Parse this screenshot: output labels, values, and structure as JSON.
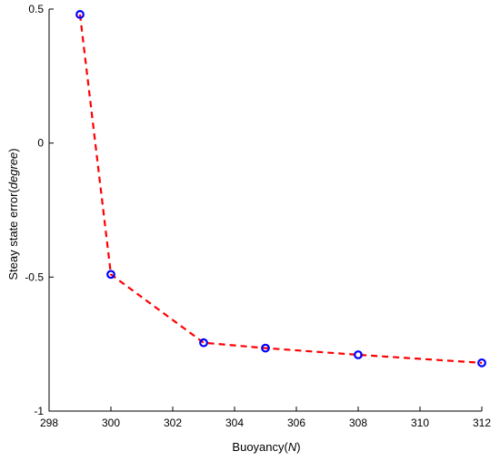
{
  "chart_data": {
    "type": "line",
    "xlabel": {
      "main": "Buoyancy(",
      "italic": "N",
      "end": ")"
    },
    "ylabel": {
      "main": "Steay state error(",
      "italic": "degree",
      "end": ")"
    },
    "xlim": [
      298,
      312
    ],
    "ylim": [
      -1,
      0.5
    ],
    "xticks": [
      298,
      300,
      302,
      304,
      306,
      308,
      310,
      312
    ],
    "yticks": [
      -1,
      -0.5,
      0,
      0.5
    ],
    "xtick_labels": [
      "298",
      "300",
      "302",
      "304",
      "306",
      "308",
      "310",
      "312"
    ],
    "ytick_labels": [
      "-1",
      "-0.5",
      "0",
      "0.5"
    ],
    "grid": false,
    "series": [
      {
        "x": [
          299,
          300,
          303,
          305,
          308,
          312
        ],
        "y": [
          0.48,
          -0.49,
          -0.745,
          -0.765,
          -0.79,
          -0.82
        ],
        "line_color": "#ff0000",
        "line_style": "dashed",
        "marker": "circle",
        "marker_color": "#0000ff"
      }
    ]
  }
}
